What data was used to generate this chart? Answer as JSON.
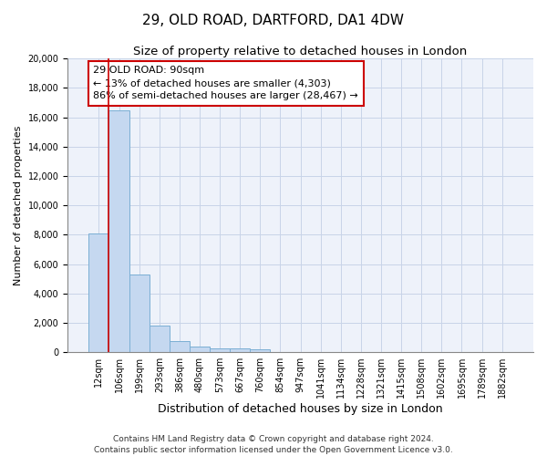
{
  "title": "29, OLD ROAD, DARTFORD, DA1 4DW",
  "subtitle": "Size of property relative to detached houses in London",
  "xlabel": "Distribution of detached houses by size in London",
  "ylabel": "Number of detached properties",
  "categories": [
    "12sqm",
    "106sqm",
    "199sqm",
    "293sqm",
    "386sqm",
    "480sqm",
    "573sqm",
    "667sqm",
    "760sqm",
    "854sqm",
    "947sqm",
    "1041sqm",
    "1134sqm",
    "1228sqm",
    "1321sqm",
    "1415sqm",
    "1508sqm",
    "1602sqm",
    "1695sqm",
    "1789sqm",
    "1882sqm"
  ],
  "bar_heights": [
    8100,
    16500,
    5300,
    1800,
    750,
    380,
    280,
    230,
    180,
    0,
    0,
    0,
    0,
    0,
    0,
    0,
    0,
    0,
    0,
    0,
    0
  ],
  "bar_color": "#c5d8f0",
  "bar_edge_color": "#7bafd4",
  "grid_color": "#c8d4e8",
  "background_color": "#eef2fa",
  "vline_color": "#cc0000",
  "annotation_box_text": "29 OLD ROAD: 90sqm\n← 13% of detached houses are smaller (4,303)\n86% of semi-detached houses are larger (28,467) →",
  "ylim": [
    0,
    20000
  ],
  "yticks": [
    0,
    2000,
    4000,
    6000,
    8000,
    10000,
    12000,
    14000,
    16000,
    18000,
    20000
  ],
  "footer_line1": "Contains HM Land Registry data © Crown copyright and database right 2024.",
  "footer_line2": "Contains public sector information licensed under the Open Government Licence v3.0.",
  "title_fontsize": 11,
  "subtitle_fontsize": 9.5,
  "xlabel_fontsize": 9,
  "ylabel_fontsize": 8,
  "tick_fontsize": 7,
  "annotation_fontsize": 8,
  "footer_fontsize": 6.5
}
